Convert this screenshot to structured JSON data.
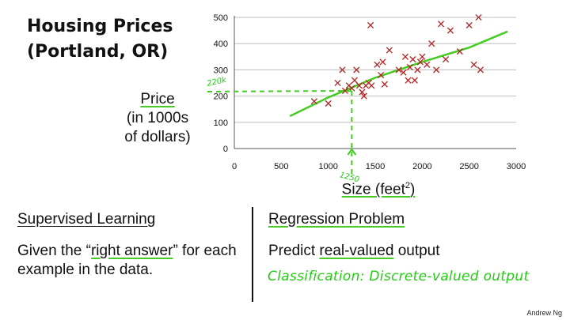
{
  "title_lines": [
    "Housing Prices",
    "(Portland, OR)"
  ],
  "ylabel_lines": [
    "Price",
    "(in 1000s",
    "of dollars)"
  ],
  "xlabel": "Size (feet",
  "xlabel_sup": "2",
  "xlabel_close": ")",
  "left": {
    "heading": "Supervised Learning",
    "text_before": "Given the “",
    "text_highlight": "right answer",
    "text_after": "” for each example in the data."
  },
  "right": {
    "heading": "Regression Problem",
    "text_before": "Predict ",
    "text_highlight": "real-valued",
    "text_after": " output"
  },
  "handwritten_note": "Classification: Discrete-valued output",
  "credit": "Andrew Ng",
  "chart_data": {
    "type": "scatter",
    "xlim": [
      0,
      3000
    ],
    "ylim": [
      0,
      500
    ],
    "x_ticks": [
      0,
      500,
      1000,
      1500,
      2000,
      2500,
      3000
    ],
    "y_ticks": [
      0,
      100,
      200,
      300,
      400,
      500
    ],
    "grid": "horizontal",
    "marker_color": "#b22222",
    "fit_color": "#44cc22",
    "points": [
      [
        850,
        180
      ],
      [
        1000,
        172
      ],
      [
        1100,
        250
      ],
      [
        1150,
        300
      ],
      [
        1180,
        220
      ],
      [
        1220,
        240
      ],
      [
        1250,
        230
      ],
      [
        1280,
        260
      ],
      [
        1300,
        300
      ],
      [
        1330,
        240
      ],
      [
        1360,
        215
      ],
      [
        1380,
        200
      ],
      [
        1400,
        240
      ],
      [
        1430,
        250
      ],
      [
        1450,
        470
      ],
      [
        1460,
        240
      ],
      [
        1520,
        320
      ],
      [
        1560,
        280
      ],
      [
        1580,
        330
      ],
      [
        1600,
        245
      ],
      [
        1650,
        375
      ],
      [
        1750,
        300
      ],
      [
        1800,
        290
      ],
      [
        1820,
        350
      ],
      [
        1850,
        260
      ],
      [
        1870,
        310
      ],
      [
        1900,
        340
      ],
      [
        1920,
        260
      ],
      [
        1950,
        300
      ],
      [
        1980,
        330
      ],
      [
        2000,
        350
      ],
      [
        2050,
        320
      ],
      [
        2100,
        400
      ],
      [
        2150,
        300
      ],
      [
        2200,
        475
      ],
      [
        2250,
        340
      ],
      [
        2300,
        450
      ],
      [
        2400,
        370
      ],
      [
        2500,
        470
      ],
      [
        2550,
        320
      ],
      [
        2600,
        500
      ],
      [
        2620,
        300
      ]
    ],
    "fit_line": [
      [
        600,
        125
      ],
      [
        1000,
        195
      ],
      [
        1500,
        270
      ],
      [
        2000,
        330
      ],
      [
        2500,
        385
      ],
      [
        2900,
        445
      ]
    ],
    "annotation": {
      "x_value": 1250,
      "y_value": 220,
      "x_text": "1250",
      "y_text": "220k"
    }
  }
}
